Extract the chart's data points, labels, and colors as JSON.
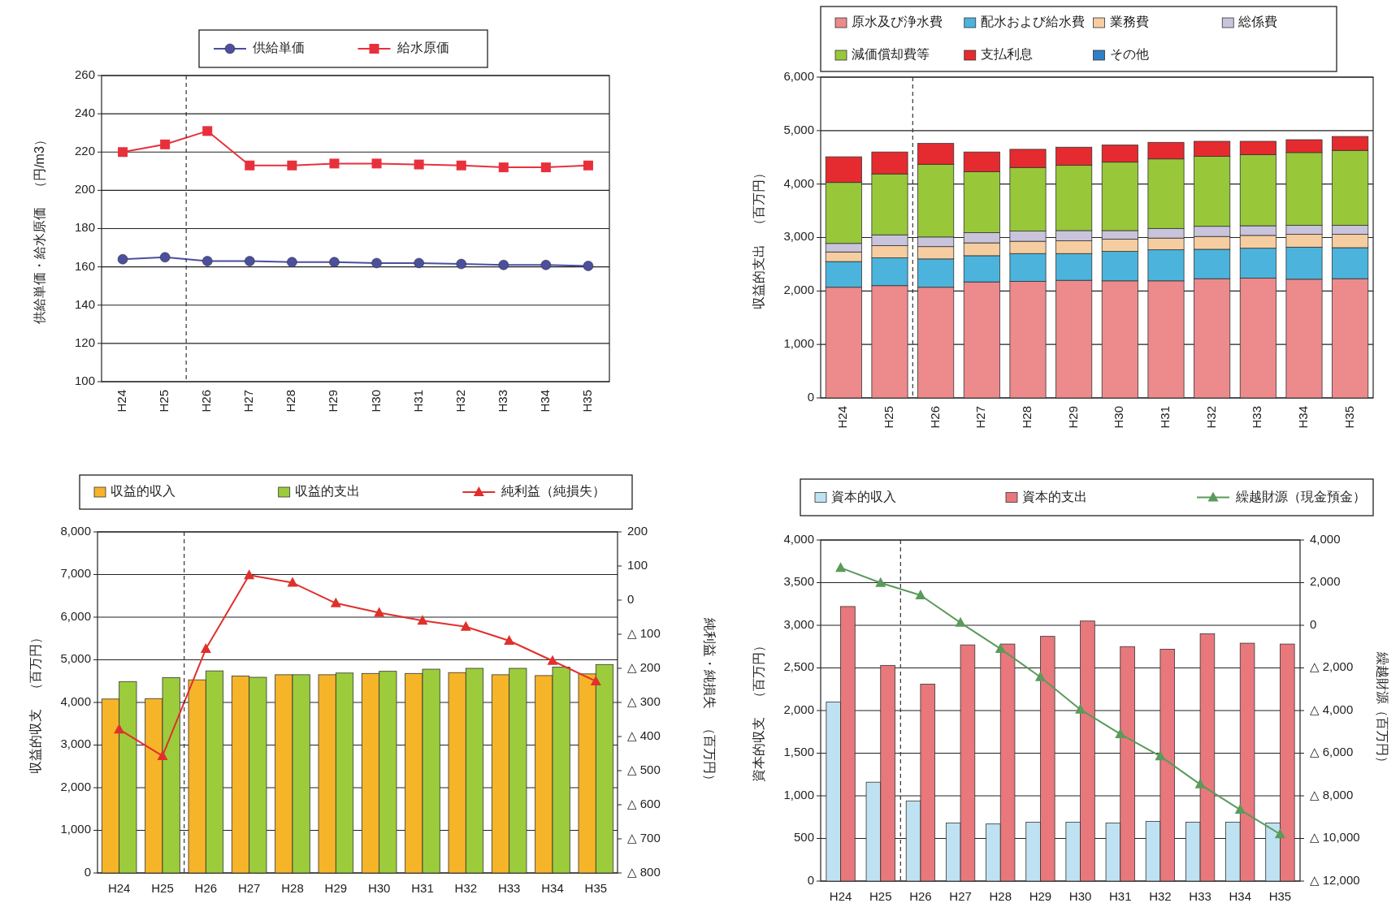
{
  "chart_data": [
    {
      "type": "line",
      "categories": [
        "H24",
        "H25",
        "H26",
        "H27",
        "H28",
        "H29",
        "H30",
        "H31",
        "H32",
        "H33",
        "H34",
        "H35"
      ],
      "ylabel": "供給単価・給水原価　（円/m3）",
      "ylim": [
        100,
        260
      ],
      "yticks": [
        100,
        120,
        140,
        160,
        180,
        200,
        220,
        240,
        260
      ],
      "grid": "y",
      "legend": "top",
      "series": [
        {
          "name": "供給単価",
          "color": "#4b4f9e",
          "marker": "circle",
          "values": [
            164,
            165,
            163,
            163,
            162.5,
            162.5,
            162,
            162,
            161.5,
            161,
            161,
            160.5
          ]
        },
        {
          "name": "給水原価",
          "color": "#e8303c",
          "marker": "square",
          "values": [
            220,
            224,
            231,
            213,
            213,
            214,
            214,
            213.5,
            213,
            212,
            212,
            213
          ]
        }
      ]
    },
    {
      "type": "bar",
      "stacked": true,
      "categories": [
        "H24",
        "H25",
        "H26",
        "H27",
        "H28",
        "H29",
        "H30",
        "H31",
        "H32",
        "H33",
        "H34",
        "H35"
      ],
      "ylabel": "収益的支出　（百万円）",
      "ylim": [
        0,
        6000
      ],
      "yticks": [
        0,
        {
          "value": 1000,
          "label": "1,000"
        },
        {
          "value": 2000,
          "label": "2,000"
        },
        {
          "value": 3000,
          "label": "3,000"
        },
        {
          "value": 4000,
          "label": "4,000"
        },
        {
          "value": 5000,
          "label": "5,000"
        },
        {
          "value": 6000,
          "label": "6,000"
        }
      ],
      "grid": "y",
      "legend": "top",
      "series": [
        {
          "name": "原水及び浄水費",
          "color": "#ec8a8c",
          "values": [
            2070,
            2100,
            2070,
            2170,
            2180,
            2200,
            2190,
            2190,
            2230,
            2240,
            2220,
            2230
          ]
        },
        {
          "name": "配水および給水費",
          "color": "#4cb4dc",
          "values": [
            480,
            520,
            530,
            490,
            520,
            500,
            550,
            580,
            550,
            560,
            600,
            580
          ]
        },
        {
          "name": "業務費",
          "color": "#f6cda0",
          "values": [
            180,
            230,
            230,
            240,
            230,
            240,
            230,
            220,
            240,
            240,
            240,
            250
          ]
        },
        {
          "name": "総係費",
          "color": "#c9c4dc",
          "values": [
            160,
            200,
            180,
            190,
            190,
            190,
            160,
            180,
            190,
            180,
            170,
            170
          ]
        },
        {
          "name": "減価償却費等",
          "color": "#98c83a",
          "values": [
            1140,
            1140,
            1360,
            1140,
            1190,
            1220,
            1280,
            1300,
            1310,
            1330,
            1360,
            1400
          ]
        },
        {
          "name": "支払利息",
          "color": "#e52b2f",
          "values": [
            480,
            410,
            390,
            370,
            340,
            340,
            320,
            310,
            280,
            250,
            240,
            260
          ]
        },
        {
          "name": "その他",
          "color": "#2f7fc6",
          "values": [
            0,
            0,
            0,
            0,
            0,
            0,
            0,
            0,
            0,
            0,
            0,
            0
          ]
        }
      ]
    },
    {
      "type": "bar",
      "categories": [
        "H24",
        "H25",
        "H26",
        "H27",
        "H28",
        "H29",
        "H30",
        "H31",
        "H32",
        "H33",
        "H34",
        "H35"
      ],
      "ylabel": "収益的収支　（百万円）",
      "y2label": "純利益・純損失　（百万円）",
      "ylim": [
        0,
        8000
      ],
      "yticks": [
        0,
        {
          "value": 1000,
          "label": "1,000"
        },
        {
          "value": 2000,
          "label": "2,000"
        },
        {
          "value": 3000,
          "label": "3,000"
        },
        {
          "value": 4000,
          "label": "4,000"
        },
        {
          "value": 5000,
          "label": "5,000"
        },
        {
          "value": 6000,
          "label": "6,000"
        },
        {
          "value": 7000,
          "label": "7,000"
        },
        {
          "value": 8000,
          "label": "8,000"
        }
      ],
      "y2lim": [
        -800,
        200
      ],
      "y2ticks": [
        200,
        100,
        0,
        {
          "value": -100,
          "label": "△ 100"
        },
        {
          "value": -200,
          "label": "△ 200"
        },
        {
          "value": -300,
          "label": "△ 300"
        },
        {
          "value": -400,
          "label": "△ 400"
        },
        {
          "value": -500,
          "label": "△ 500"
        },
        {
          "value": -600,
          "label": "△ 600"
        },
        {
          "value": -700,
          "label": "△ 700"
        },
        {
          "value": -800,
          "label": "△ 800"
        }
      ],
      "grid": "y",
      "legend": "top",
      "series": [
        {
          "name": "収益的収入",
          "color": "#f6b428",
          "values": [
            4080,
            4090,
            4530,
            4620,
            4650,
            4650,
            4680,
            4680,
            4700,
            4650,
            4630,
            4670
          ]
        },
        {
          "name": "収益的支出",
          "color": "#9ccc3c",
          "values": [
            4490,
            4580,
            4740,
            4590,
            4650,
            4690,
            4730,
            4780,
            4800,
            4800,
            4830,
            4890
          ]
        },
        {
          "name": "純利益（純損失）",
          "type": "line",
          "axis": "y2",
          "marker": "triangle",
          "color": "#e0302c",
          "values": [
            -379,
            -457,
            -143,
            73,
            51,
            -9,
            -37,
            -60,
            -78,
            -119,
            -178,
            -238
          ]
        }
      ]
    },
    {
      "type": "bar",
      "categories": [
        "H24",
        "H25",
        "H26",
        "H27",
        "H28",
        "H29",
        "H30",
        "H31",
        "H32",
        "H33",
        "H34",
        "H35"
      ],
      "ylabel": "資本的収支　（百万円）",
      "y2label": "繰越財源（百万円）",
      "ylim": [
        0,
        4000
      ],
      "yticks": [
        0,
        500,
        {
          "value": 1000,
          "label": "1,000"
        },
        {
          "value": 1500,
          "label": "1,500"
        },
        {
          "value": 2000,
          "label": "2,000"
        },
        {
          "value": 2500,
          "label": "2,500"
        },
        {
          "value": 3000,
          "label": "3,000"
        },
        {
          "value": 3500,
          "label": "3,500"
        },
        {
          "value": 4000,
          "label": "4,000"
        }
      ],
      "y2lim": [
        -12000,
        4000
      ],
      "y2ticks": [
        {
          "value": 4000,
          "label": "4,000"
        },
        {
          "value": 2000,
          "label": "2,000"
        },
        0,
        {
          "value": -2000,
          "label": "△ 2,000"
        },
        {
          "value": -4000,
          "label": "△ 4,000"
        },
        {
          "value": -6000,
          "label": "△ 6,000"
        },
        {
          "value": -8000,
          "label": "△ 8,000"
        },
        {
          "value": -10000,
          "label": "△ 10,000"
        },
        {
          "value": -12000,
          "label": "△ 12,000"
        }
      ],
      "grid": "y",
      "legend": "top",
      "series": [
        {
          "name": "資本的収入",
          "color": "#bfe2f2",
          "values": [
            2100,
            1160,
            940,
            680,
            670,
            690,
            690,
            680,
            700,
            690,
            690,
            680
          ]
        },
        {
          "name": "資本的支出",
          "color": "#e8787c",
          "values": [
            3220,
            2530,
            2310,
            2770,
            2780,
            2870,
            3050,
            2750,
            2720,
            2900,
            2790,
            2780
          ]
        },
        {
          "name": "繰越財源（現金預金）",
          "type": "line",
          "axis": "y2",
          "marker": "triangle",
          "color": "#5a9a5a",
          "values": [
            2700,
            1990,
            1410,
            120,
            -1100,
            -2430,
            -3950,
            -5100,
            -6140,
            -7460,
            -8650,
            -9800
          ]
        }
      ]
    }
  ]
}
